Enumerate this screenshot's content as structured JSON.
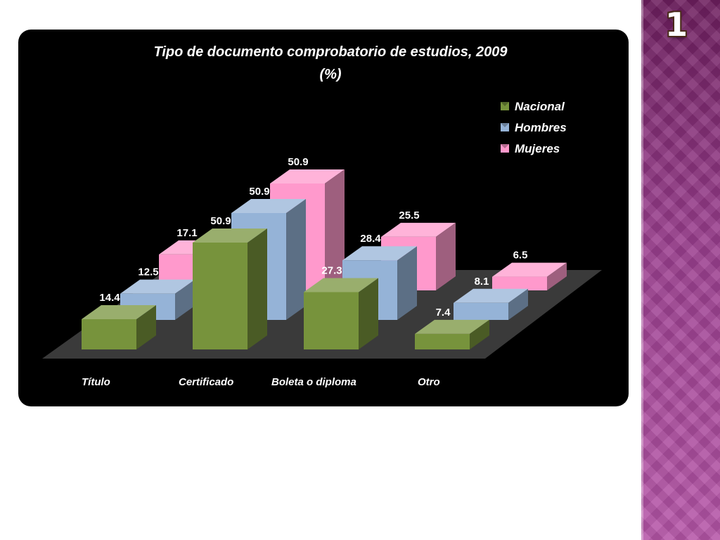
{
  "slide": {
    "number": "1"
  },
  "colors": {
    "nacional": "#77933c",
    "hombres": "#95b3d7",
    "mujeres": "#ff99cc",
    "panel": "#000000",
    "floor": "#3a3a3a"
  },
  "chart_data": {
    "type": "bar",
    "subtype": "3d-clustered-column",
    "title": "Tipo de documento comprobatorio de estudios, 2009",
    "subtitle": "(%)",
    "categories": [
      "Título",
      "Certificado",
      "Boleta o diploma",
      "Otro"
    ],
    "series": [
      {
        "name": "Nacional",
        "values": [
          14.4,
          50.9,
          27.3,
          7.4
        ],
        "labels": [
          "14.4",
          "50.9",
          "27.3",
          "7.4"
        ],
        "color": "#77933c"
      },
      {
        "name": "Hombres",
        "values": [
          12.5,
          50.9,
          28.4,
          8.1
        ],
        "labels": [
          "12.5",
          "50.9",
          "28.4",
          "8.1"
        ],
        "color": "#95b3d7"
      },
      {
        "name": "Mujeres",
        "values": [
          17.1,
          50.9,
          25.5,
          6.5
        ],
        "labels": [
          "17.1",
          "50.9",
          "25.5",
          "6.5"
        ],
        "color": "#ff99cc"
      }
    ],
    "ylim": [
      0,
      55
    ],
    "grid": false,
    "legend": "top-right",
    "data_labels": true
  }
}
